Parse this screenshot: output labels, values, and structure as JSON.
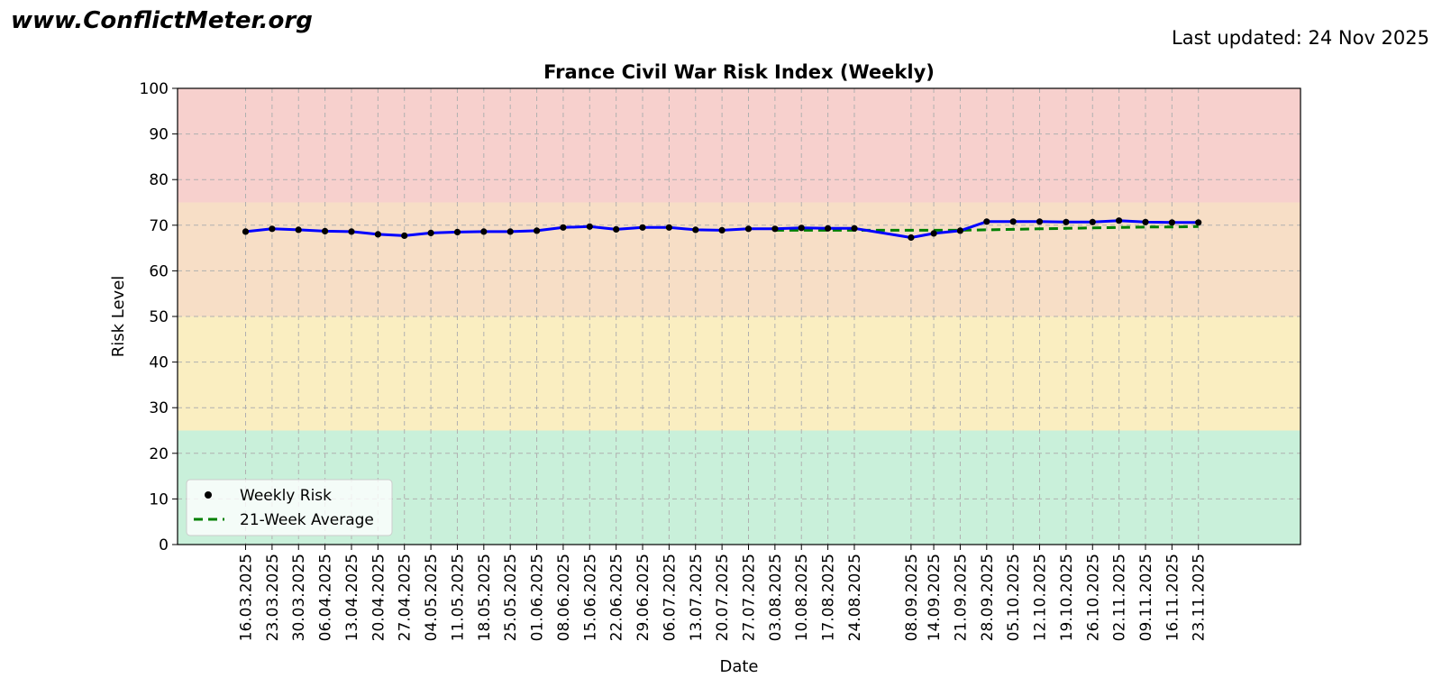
{
  "header": {
    "site": "www.ConflictMeter.org",
    "updated": "Last updated: 24 Nov 2025"
  },
  "chart_data": {
    "type": "line",
    "title": "France Civil War Risk Index (Weekly)",
    "xlabel": "Date",
    "ylabel": "Risk Level",
    "ylim": [
      0,
      100
    ],
    "yticks": [
      0,
      10,
      20,
      30,
      40,
      50,
      60,
      70,
      80,
      90,
      100
    ],
    "xlim": [
      "2025-02-26",
      "2025-12-20"
    ],
    "grid": true,
    "legend_position": "lower-left",
    "risk_bands": [
      {
        "from": 0,
        "to": 25,
        "color": "#c9f0da"
      },
      {
        "from": 25,
        "to": 50,
        "color": "#faeec1"
      },
      {
        "from": 50,
        "to": 75,
        "color": "#f7dec6"
      },
      {
        "from": 75,
        "to": 100,
        "color": "#f7d0cd"
      }
    ],
    "x": [
      "2025-03-16",
      "2025-03-23",
      "2025-03-30",
      "2025-04-06",
      "2025-04-13",
      "2025-04-20",
      "2025-04-27",
      "2025-05-04",
      "2025-05-11",
      "2025-05-18",
      "2025-05-25",
      "2025-06-01",
      "2025-06-08",
      "2025-06-15",
      "2025-06-22",
      "2025-06-29",
      "2025-07-06",
      "2025-07-13",
      "2025-07-20",
      "2025-07-27",
      "2025-08-03",
      "2025-08-10",
      "2025-08-17",
      "2025-08-24",
      "2025-09-08",
      "2025-09-14",
      "2025-09-21",
      "2025-09-28",
      "2025-10-05",
      "2025-10-12",
      "2025-10-19",
      "2025-10-26",
      "2025-11-02",
      "2025-11-09",
      "2025-11-16",
      "2025-11-23"
    ],
    "x_tick_labels": [
      "16.03.2025",
      "23.03.2025",
      "30.03.2025",
      "06.04.2025",
      "13.04.2025",
      "20.04.2025",
      "27.04.2025",
      "04.05.2025",
      "11.05.2025",
      "18.05.2025",
      "25.05.2025",
      "01.06.2025",
      "08.06.2025",
      "15.06.2025",
      "22.06.2025",
      "29.06.2025",
      "06.07.2025",
      "13.07.2025",
      "20.07.2025",
      "27.07.2025",
      "03.08.2025",
      "10.08.2025",
      "17.08.2025",
      "24.08.2025",
      "08.09.2025",
      "14.09.2025",
      "21.09.2025",
      "28.09.2025",
      "05.10.2025",
      "12.10.2025",
      "19.10.2025",
      "26.10.2025",
      "02.11.2025",
      "09.11.2025",
      "16.11.2025",
      "23.11.2025"
    ],
    "series": [
      {
        "name": "Weekly Risk",
        "color": "#0000ff",
        "marker_color": "#000000",
        "values": [
          68.6,
          69.2,
          69.0,
          68.7,
          68.6,
          68.0,
          67.7,
          68.3,
          68.5,
          68.6,
          68.6,
          68.8,
          69.5,
          69.7,
          69.1,
          69.5,
          69.5,
          69.0,
          68.9,
          69.2,
          69.2,
          69.4,
          69.3,
          69.3,
          67.3,
          68.2,
          68.8,
          70.8,
          70.8,
          70.8,
          70.7,
          70.7,
          71.0,
          70.7,
          70.6,
          70.6
        ]
      },
      {
        "name": "21-Week Average",
        "color": "#008000",
        "dashed": true,
        "x": [
          "2025-08-03",
          "2025-08-10",
          "2025-08-17",
          "2025-08-24",
          "2025-09-08",
          "2025-09-14",
          "2025-09-21",
          "2025-09-28",
          "2025-10-05",
          "2025-10-12",
          "2025-10-19",
          "2025-10-26",
          "2025-11-02",
          "2025-11-09",
          "2025-11-16",
          "2025-11-23"
        ],
        "values": [
          68.9,
          68.9,
          68.9,
          68.9,
          68.9,
          68.9,
          68.9,
          69.0,
          69.1,
          69.2,
          69.3,
          69.4,
          69.5,
          69.6,
          69.6,
          69.7
        ]
      }
    ]
  }
}
